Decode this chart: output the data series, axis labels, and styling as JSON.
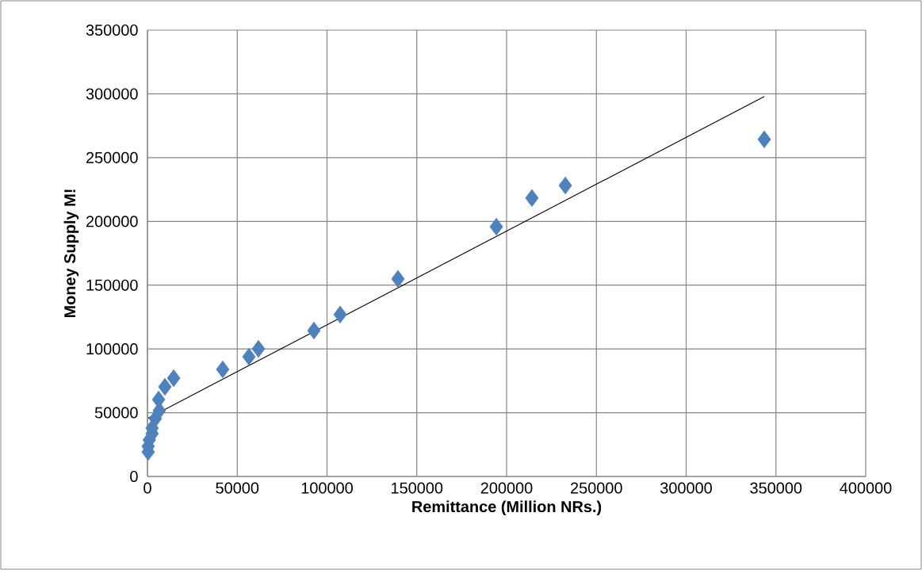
{
  "chart_data": {
    "type": "scatter",
    "xlabel": "Remittance (Million NRs.)",
    "ylabel": "Money Supply M!",
    "xlim": [
      0,
      400000
    ],
    "ylim": [
      0,
      350000
    ],
    "xticks": [
      0,
      50000,
      100000,
      150000,
      200000,
      250000,
      300000,
      350000,
      400000
    ],
    "yticks": [
      0,
      50000,
      100000,
      150000,
      200000,
      250000,
      300000,
      350000
    ],
    "grid": true,
    "marker": "diamond",
    "series": [
      {
        "color": "#4f81bd",
        "x": [
          400,
          400,
          1000,
          2600,
          2600,
          4400,
          6600,
          6200,
          9700,
          14600,
          41900,
          56500,
          61800,
          92700,
          107300,
          139500,
          194300,
          214100,
          232700,
          343500
        ],
        "values": [
          19300,
          23600,
          28600,
          33600,
          37900,
          45400,
          51600,
          60300,
          70300,
          77100,
          84000,
          93900,
          100100,
          114400,
          126900,
          154900,
          195900,
          218300,
          228200,
          264300
        ]
      },
      {
        "type": "line",
        "color": "#000000",
        "marker": "none",
        "x": [
          400,
          343500
        ],
        "values": [
          45700,
          297900
        ]
      }
    ]
  }
}
